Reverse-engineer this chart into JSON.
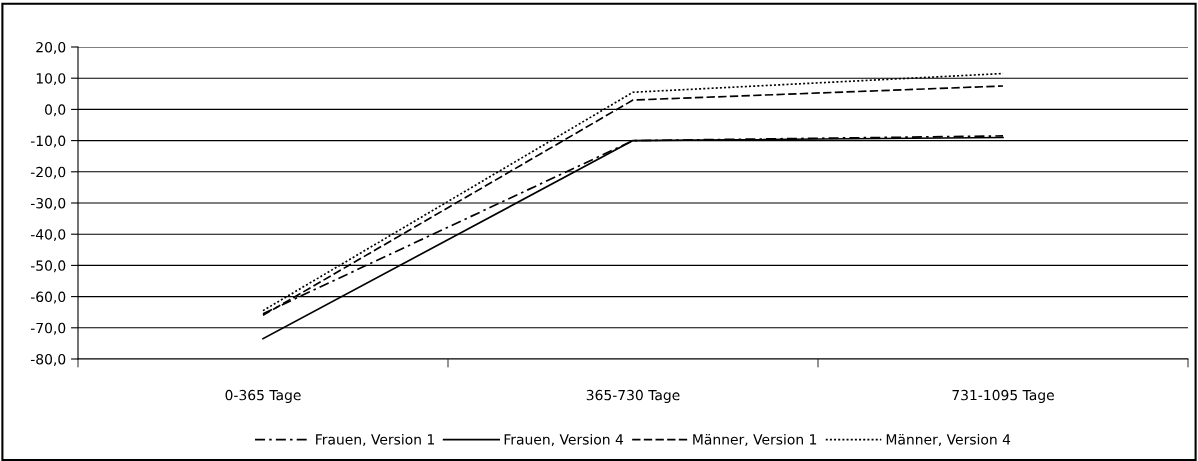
{
  "chart_data": {
    "type": "line",
    "categories": [
      "0-365 Tage",
      "365-730 Tage",
      "731-1095 Tage"
    ],
    "series": [
      {
        "name": "Frauen, Version 1",
        "color": "#000000",
        "line_style": "dashdot",
        "values": [
          -65.5,
          -10,
          -8.5
        ]
      },
      {
        "name": "Frauen, Version 4",
        "color": "#000000",
        "line_style": "solid",
        "values": [
          -73.5,
          -10,
          -9
        ]
      },
      {
        "name": "Männer, Version 1",
        "color": "#000000",
        "line_style": "dashed",
        "values": [
          -66,
          3,
          7.5
        ]
      },
      {
        "name": "Männer, Version 4",
        "color": "#000000",
        "line_style": "dotted",
        "values": [
          -64.5,
          5.5,
          11.5
        ]
      }
    ],
    "ylim": [
      -80,
      20
    ],
    "yticks": [
      {
        "value": -80,
        "label": "-80,0"
      },
      {
        "value": -70,
        "label": "-70,0"
      },
      {
        "value": -60,
        "label": "-60,0"
      },
      {
        "value": -50,
        "label": "-50,0"
      },
      {
        "value": -40,
        "label": "-40,0"
      },
      {
        "value": -30,
        "label": "-30,0"
      },
      {
        "value": -20,
        "label": "-20,0"
      },
      {
        "value": -10,
        "label": "-10,0"
      },
      {
        "value": 0,
        "label": "0,0"
      },
      {
        "value": 10,
        "label": "10,0"
      },
      {
        "value": 20,
        "label": "20,0"
      }
    ],
    "grid": "y",
    "legend": "bottom",
    "marker": "none"
  }
}
